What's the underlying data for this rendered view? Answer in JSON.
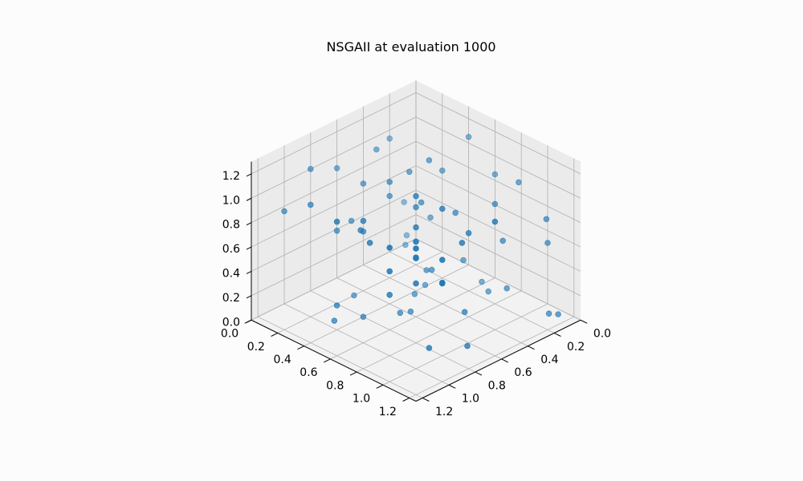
{
  "chart_data": {
    "type": "scatter",
    "dimensions": "3d",
    "title": "NSGAII at evaluation 1000",
    "xlabel": "",
    "ylabel": "",
    "zlabel": "",
    "xlim": [
      0,
      1.25
    ],
    "ylim": [
      0,
      1.25
    ],
    "zlim": [
      0,
      1.3
    ],
    "x_ticks": [
      "0.0",
      "0.2",
      "0.4",
      "0.6",
      "0.8",
      "1.0",
      "1.2"
    ],
    "y_ticks": [
      "0.0",
      "0.2",
      "0.4",
      "0.6",
      "0.8",
      "1.0",
      "1.2"
    ],
    "z_ticks": [
      "0.0",
      "0.2",
      "0.4",
      "0.6",
      "0.8",
      "1.0",
      "1.2"
    ],
    "grid": true,
    "marker_color": "#1f77b4",
    "points": [
      [
        0.32,
        0.39,
        0.0
      ],
      [
        0.43,
        0.42,
        0.0
      ],
      [
        0.67,
        0.2,
        0.0
      ],
      [
        0.8,
        0.4,
        0.0
      ],
      [
        0.63,
        0.51,
        0.0
      ],
      [
        0.58,
        0.54,
        0.0
      ],
      [
        0.94,
        0.32,
        0.0
      ],
      [
        0.63,
        1.02,
        0.0
      ],
      [
        0.79,
        0.89,
        0.0
      ],
      [
        0.08,
        0.58,
        0.0
      ],
      [
        0.13,
        0.68,
        0.0
      ],
      [
        0.07,
        1.08,
        0.0
      ],
      [
        0.04,
        1.12,
        0.0
      ],
      [
        0.12,
        0.05,
        0.12
      ],
      [
        0.09,
        0.0,
        0.35
      ],
      [
        0.24,
        0.35,
        0.49
      ],
      [
        0.12,
        0.81,
        0.09
      ],
      [
        0.2,
        0.56,
        0.23
      ],
      [
        0.18,
        0.1,
        0.1
      ],
      [
        0.36,
        0.44,
        0.17
      ],
      [
        0.5,
        0.87,
        0.13
      ],
      [
        0.46,
        0.58,
        0.3
      ],
      [
        0.0,
        1.0,
        0.5
      ],
      [
        0.0,
        0.99,
        0.69
      ],
      [
        0.2,
        0.86,
        0.55
      ],
      [
        0.0,
        0.78,
        0.88
      ],
      [
        0.0,
        0.6,
        0.85
      ],
      [
        0.4,
        0.35,
        0.95
      ],
      [
        0.4,
        0.1,
        1.0
      ],
      [
        0.0,
        0.4,
        1.05
      ],
      [
        0.6,
        0.6,
        0.9
      ],
      [
        0.2,
        0.4,
        0.88
      ],
      [
        0.6,
        0.2,
        0.88
      ],
      [
        0.8,
        0.0,
        1.0
      ],
      [
        0.45,
        0.49,
        0.8
      ],
      [
        0.53,
        0.33,
        0.81
      ],
      [
        0.8,
        0.2,
        0.6
      ],
      [
        1.0,
        0.4,
        0.2
      ],
      [
        0.66,
        0.17,
        0.59
      ],
      [
        0.8,
        0.4,
        0.7
      ],
      [
        0.4,
        0.7,
        0.8
      ],
      [
        1.0,
        0.0,
        0.76
      ],
      [
        0.6,
        0.0,
        0.9
      ],
      [
        0.2,
        0.0,
        0.93
      ],
      [
        0.6,
        0.4,
        1.0
      ],
      [
        0.95,
        0.53,
        0.86
      ],
      [
        1.0,
        0.2,
        0.92
      ],
      [
        0.2,
        0.8,
        0.82
      ],
      [
        0.32,
        0.42,
        1.04
      ],
      [
        0.8,
        0.8,
        0.7
      ],
      [
        1.0,
        1.0,
        0.7
      ],
      [
        1.0,
        0.8,
        0.5
      ],
      [
        0.8,
        1.0,
        0.6
      ],
      [
        0.9,
        0.9,
        0.8
      ],
      [
        1.1,
        0.9,
        0.8
      ],
      [
        0.9,
        1.1,
        0.7
      ],
      [
        1.05,
        0.7,
        0.9
      ],
      [
        0.7,
        1.05,
        0.9
      ],
      [
        1.2,
        1.0,
        1.1
      ],
      [
        1.0,
        1.2,
        1.0
      ],
      [
        0.6,
        1.0,
        0.9
      ],
      [
        1.0,
        0.6,
        1.0
      ],
      [
        0.85,
        0.85,
        1.0
      ],
      [
        1.1,
        1.1,
        1.15
      ],
      [
        0.75,
        0.75,
        1.15
      ],
      [
        1.2,
        0.6,
        1.1
      ],
      [
        0.6,
        1.2,
        1.1
      ],
      [
        0.7,
        0.9,
        1.1
      ],
      [
        1.2,
        1.2,
        1.2
      ]
    ]
  }
}
